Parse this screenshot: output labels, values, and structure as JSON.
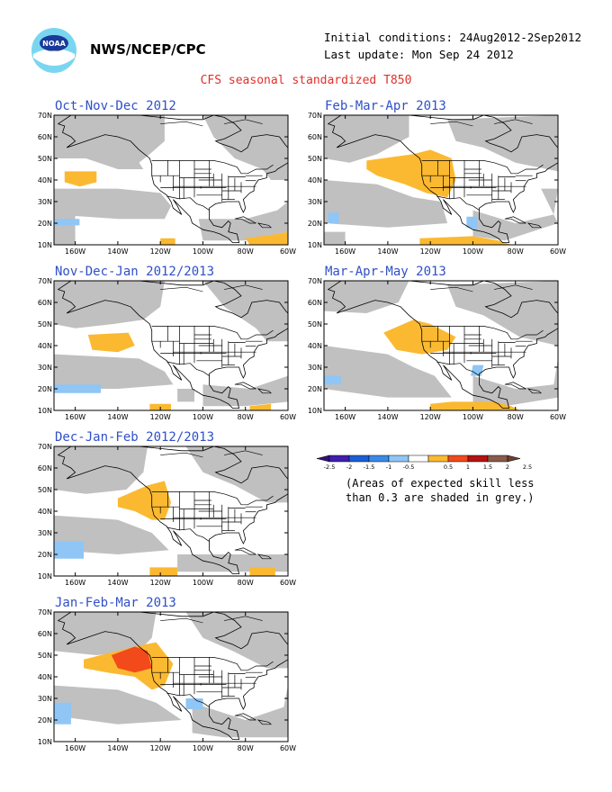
{
  "header": {
    "org": "NWS/NCEP/CPC",
    "initial_conditions": "Initial conditions: 24Aug2012-2Sep2012",
    "last_update": "Last update: Mon Sep 24 2012",
    "logo_text": "NOAA"
  },
  "main_title": "CFS seasonal standardized T850",
  "axes": {
    "y_ticks": [
      "70N",
      "60N",
      "50N",
      "40N",
      "30N",
      "20N",
      "10N"
    ],
    "x_ticks": [
      "160W",
      "140W",
      "120W",
      "100W",
      "80W",
      "60W"
    ]
  },
  "panels": [
    {
      "title": "Oct-Nov-Dec 2012"
    },
    {
      "title": "Feb-Mar-Apr 2013"
    },
    {
      "title": "Nov-Dec-Jan 2012/2013"
    },
    {
      "title": "Mar-Apr-May 2013"
    },
    {
      "title": "Dec-Jan-Feb 2012/2013"
    },
    {
      "title": "Jan-Feb-Mar 2013"
    }
  ],
  "legend": {
    "ticks": [
      "-2.5",
      "-2",
      "-1.5",
      "-1",
      "-0.5",
      "0.5",
      "1",
      "1.5",
      "2",
      "2.5"
    ],
    "colors": [
      "#3f1fb0",
      "#1a5fd6",
      "#3a8ae8",
      "#8fc6f5",
      "#ffffff",
      "#fbb931",
      "#f24a1a",
      "#b31313",
      "#8a5a4a"
    ],
    "end_left_color": "#30107a",
    "end_right_color": "#6a4030",
    "note_line1": "(Areas of expected skill less",
    "note_line2": "than 0.3 are shaded in grey.)"
  },
  "colors": {
    "grey": "#c0c0c0",
    "orange": "#fbb931",
    "light_blue": "#8fc6f5",
    "red_orange": "#f24a1a",
    "dark_red": "#b31313",
    "title_blue": "#3050c8",
    "title_red": "#e0302a"
  }
}
